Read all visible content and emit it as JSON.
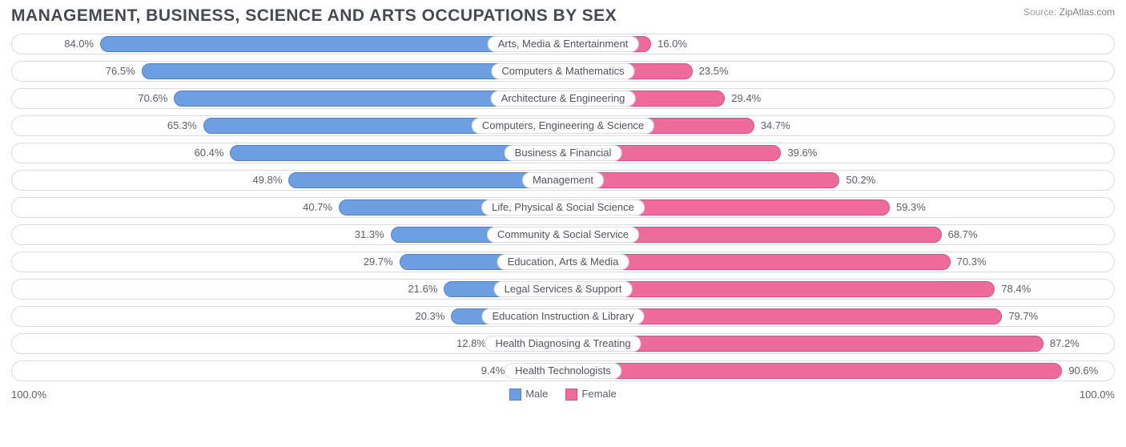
{
  "title": "MANAGEMENT, BUSINESS, SCIENCE AND ARTS OCCUPATIONS BY SEX",
  "source_label": "Source:",
  "source_value": "ZipAtlas.com",
  "chart": {
    "type": "diverging-bar",
    "male_color": "#6f9fe3",
    "male_border": "#4f82cc",
    "female_color": "#ed6c9b",
    "female_border": "#d94f83",
    "track_border": "#d9dde2",
    "background_color": "#ffffff",
    "text_color": "#5a6068",
    "half_width_pct": 50,
    "rows": [
      {
        "label": "Arts, Media & Entertainment",
        "male": 84.0,
        "female": 16.0
      },
      {
        "label": "Computers & Mathematics",
        "male": 76.5,
        "female": 23.5
      },
      {
        "label": "Architecture & Engineering",
        "male": 70.6,
        "female": 29.4
      },
      {
        "label": "Computers, Engineering & Science",
        "male": 65.3,
        "female": 34.7
      },
      {
        "label": "Business & Financial",
        "male": 60.4,
        "female": 39.6
      },
      {
        "label": "Management",
        "male": 49.8,
        "female": 50.2
      },
      {
        "label": "Life, Physical & Social Science",
        "male": 40.7,
        "female": 59.3
      },
      {
        "label": "Community & Social Service",
        "male": 31.3,
        "female": 68.7
      },
      {
        "label": "Education, Arts & Media",
        "male": 29.7,
        "female": 70.3
      },
      {
        "label": "Legal Services & Support",
        "male": 21.6,
        "female": 78.4
      },
      {
        "label": "Education Instruction & Library",
        "male": 20.3,
        "female": 79.7
      },
      {
        "label": "Health Diagnosing & Treating",
        "male": 12.8,
        "female": 87.2
      },
      {
        "label": "Health Technologists",
        "male": 9.4,
        "female": 90.6
      }
    ],
    "axis_left": "100.0%",
    "axis_right": "100.0%",
    "legend": {
      "male": "Male",
      "female": "Female"
    }
  }
}
